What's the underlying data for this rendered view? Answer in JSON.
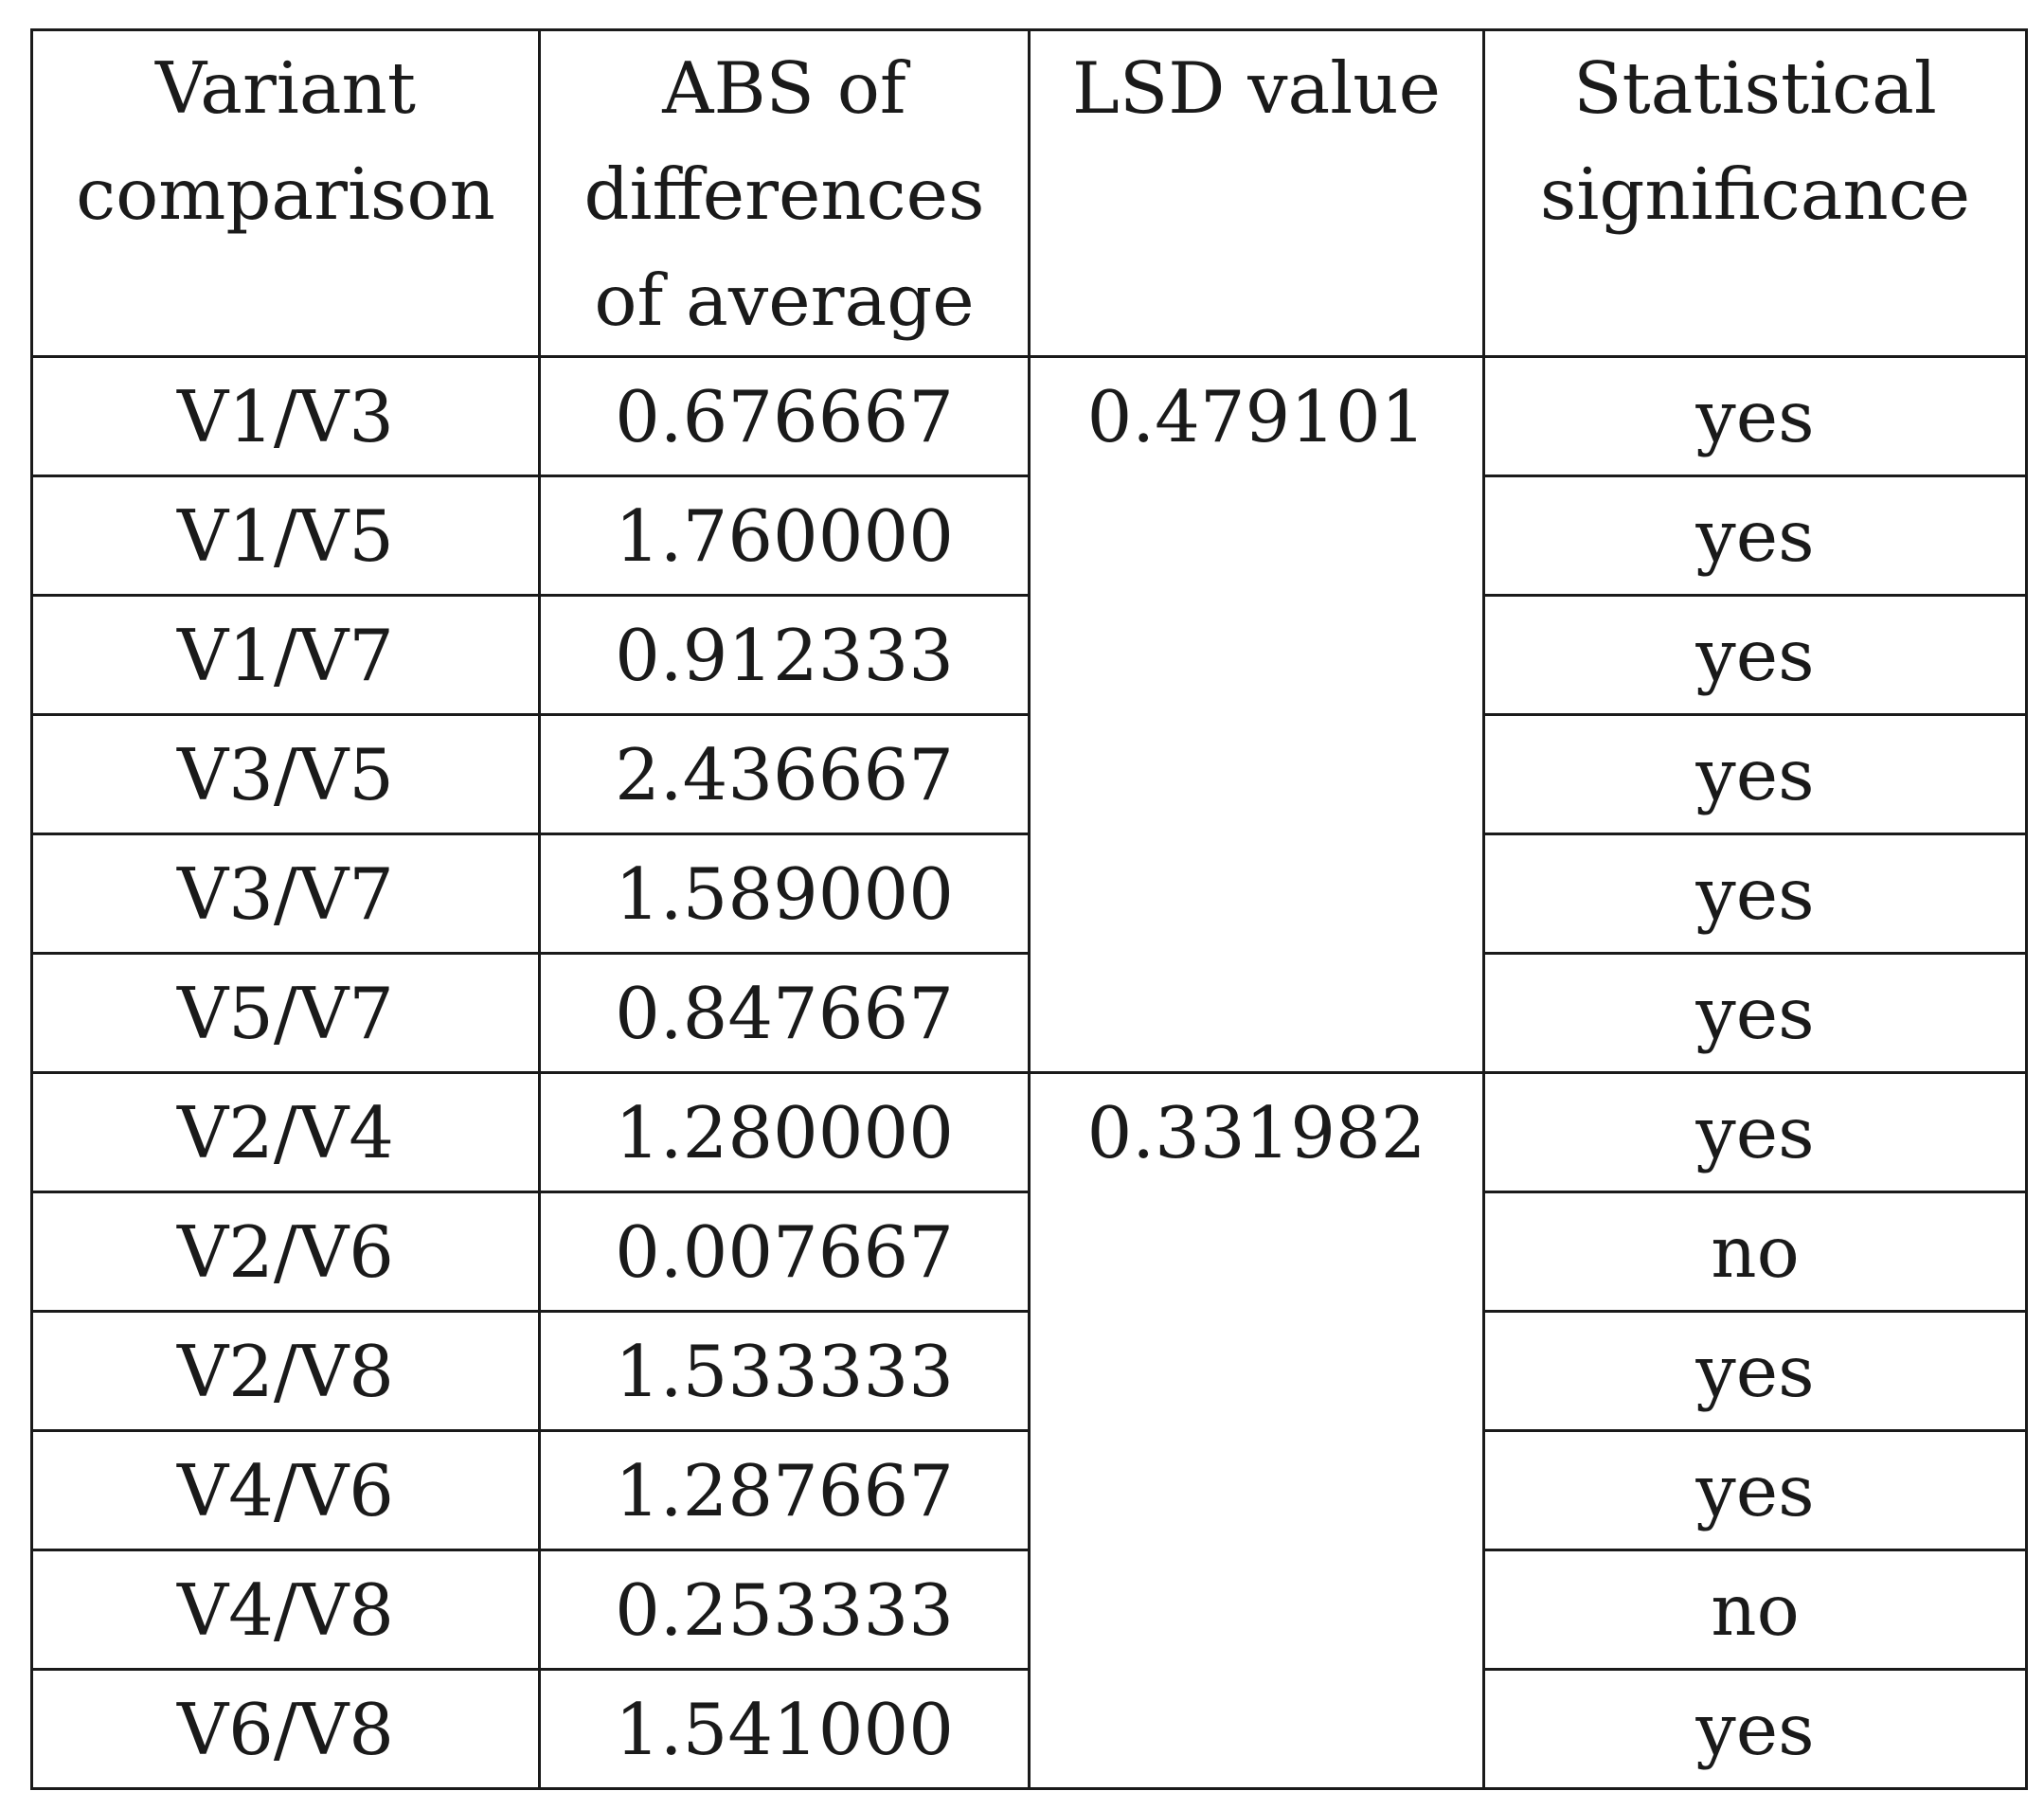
{
  "table": {
    "headers": [
      "Variant comparison",
      "ABS of differences of average",
      "LSD value",
      "Statistical significance"
    ],
    "groups": [
      {
        "lsd_value": "0.479101",
        "rows": [
          {
            "comparison": "V1/V3",
            "abs_diff": "0.676667",
            "significance": "yes"
          },
          {
            "comparison": "V1/V5",
            "abs_diff": "1.760000",
            "significance": "yes"
          },
          {
            "comparison": "V1/V7",
            "abs_diff": "0.912333",
            "significance": "yes"
          },
          {
            "comparison": "V3/V5",
            "abs_diff": "2.436667",
            "significance": "yes"
          },
          {
            "comparison": "V3/V7",
            "abs_diff": "1.589000",
            "significance": "yes"
          },
          {
            "comparison": "V5/V7",
            "abs_diff": "0.847667",
            "significance": "yes"
          }
        ]
      },
      {
        "lsd_value": "0.331982",
        "rows": [
          {
            "comparison": "V2/V4",
            "abs_diff": "1.280000",
            "significance": "yes"
          },
          {
            "comparison": "V2/V6",
            "abs_diff": "0.007667",
            "significance": "no"
          },
          {
            "comparison": "V2/V8",
            "abs_diff": "1.533333",
            "significance": "yes"
          },
          {
            "comparison": "V4/V6",
            "abs_diff": "1.287667",
            "significance": "yes"
          },
          {
            "comparison": "V4/V8",
            "abs_diff": "0.253333",
            "significance": "no"
          },
          {
            "comparison": "V6/V8",
            "abs_diff": "1.541000",
            "significance": "yes"
          }
        ]
      }
    ]
  }
}
